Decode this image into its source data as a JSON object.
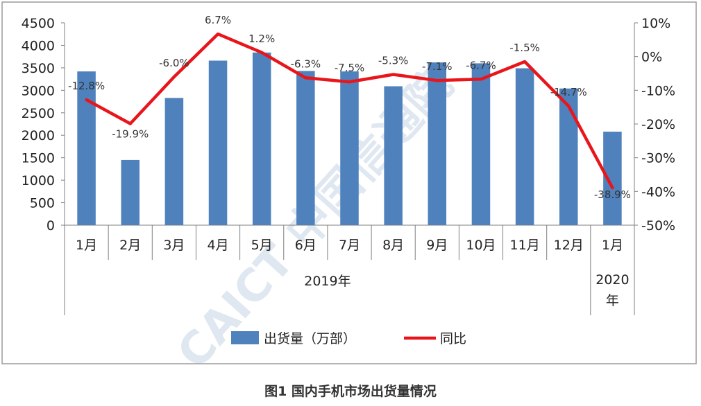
{
  "chart_data": {
    "type": "bar",
    "categories": [
      "1月",
      "2月",
      "3月",
      "4月",
      "5月",
      "6月",
      "7月",
      "8月",
      "9月",
      "10月",
      "11月",
      "12月",
      "1月"
    ],
    "groups": [
      {
        "label": "2019年",
        "from": 0,
        "to": 11
      },
      {
        "label": "2020\n年",
        "from": 12,
        "to": 12
      }
    ],
    "series": [
      {
        "name": "出货量（万部）",
        "type": "bar",
        "axis": "left",
        "values": [
          3420,
          1450,
          2830,
          3660,
          3840,
          3430,
          3420,
          3090,
          3620,
          3600,
          3490,
          3040,
          2080
        ]
      },
      {
        "name": "同比",
        "type": "line",
        "axis": "right",
        "values": [
          -12.8,
          -19.9,
          -6.0,
          6.7,
          1.2,
          -6.3,
          -7.5,
          -5.3,
          -7.1,
          -6.7,
          -1.5,
          -14.7,
          -38.9
        ],
        "labels": [
          "-12.8%",
          "-19.9%",
          "-6.0%",
          "6.7%",
          "1.2%",
          "-6.3%",
          "-7.5%",
          "-5.3%",
          "-7.1%",
          "-6.7%",
          "-1.5%",
          "-14.7%",
          "-38.9%"
        ]
      }
    ],
    "y_left": {
      "min": 0,
      "max": 4500,
      "step": 500,
      "ticks": [
        "0",
        "500",
        "1000",
        "1500",
        "2000",
        "2500",
        "3000",
        "3500",
        "4000",
        "4500"
      ]
    },
    "y_right": {
      "min": -50,
      "max": 10,
      "step": 10,
      "ticks": [
        "-50%",
        "-40%",
        "-30%",
        "-20%",
        "-10%",
        "0%",
        "10%"
      ]
    },
    "legend": {
      "position": "bottom"
    },
    "grid": false,
    "colors": {
      "bar": "#4f81bd",
      "line": "#e8161b"
    }
  },
  "watermark": "CAICT 中国信通院",
  "caption": "图1   国内手机市场出货量情况"
}
